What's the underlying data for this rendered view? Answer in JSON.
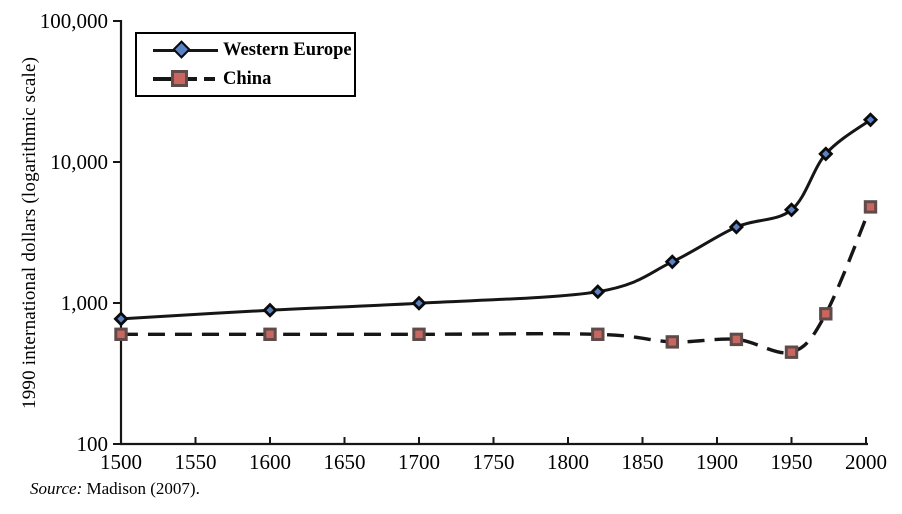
{
  "figure": {
    "source_prefix": "Source:",
    "source_citation": " Madison (2007).",
    "colors": {
      "line": "#161616",
      "axis": "#161616",
      "western_europe_marker_fill": "#5b82c4",
      "western_europe_marker_stroke": "#0b0b0b",
      "china_marker_fill": "#c9665f",
      "china_marker_stroke": "#5f4b49",
      "text": "#000000",
      "background": "#ffffff"
    }
  },
  "legend": {
    "position": "top-left",
    "items": [
      {
        "label": "Western Europe",
        "marker": "diamond",
        "line": "solid"
      },
      {
        "label": "China",
        "marker": "square",
        "line": "dashed"
      }
    ]
  },
  "chart_data": {
    "type": "line",
    "title": "",
    "xlabel": "",
    "ylabel": "1990 international dollars (logarithmic scale)",
    "y_scale": "log10",
    "grid": false,
    "xlim": [
      1500,
      2000
    ],
    "ylim": [
      100,
      100000
    ],
    "x_ticks": [
      1500,
      1550,
      1600,
      1650,
      1700,
      1750,
      1800,
      1850,
      1900,
      1950,
      2000
    ],
    "y_ticks": [
      100,
      1000,
      10000,
      100000
    ],
    "y_tick_labels": [
      "100",
      "1,000",
      "10,000",
      "100,000"
    ],
    "x": [
      1500,
      1600,
      1700,
      1820,
      1870,
      1913,
      1950,
      1973,
      2003
    ],
    "series": [
      {
        "name": "Western Europe",
        "values": [
          771,
          889,
          997,
          1202,
          1960,
          3457,
          4579,
          11417,
          19912
        ],
        "line": "solid",
        "marker": "diamond"
      },
      {
        "name": "China",
        "values": [
          600,
          600,
          600,
          600,
          530,
          552,
          448,
          838,
          4803
        ],
        "line": "dashed",
        "marker": "square"
      }
    ]
  }
}
